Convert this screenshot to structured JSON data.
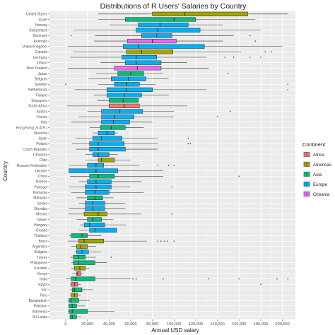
{
  "chart_data": {
    "type": "boxplot",
    "orientation": "horizontal",
    "title": "Distributions of R Users' Salaries by Country",
    "xlabel": "Annual USD salary",
    "ylabel": "Country",
    "xlim": [
      -15000,
      212000
    ],
    "x_ticks": [
      0,
      20000,
      40000,
      60000,
      80000,
      100000,
      120000,
      140000,
      160000,
      180000,
      200000
    ],
    "x_tick_labels": [
      "0",
      "20,000",
      "40,000",
      "60,000",
      "80,000",
      "100,000",
      "120,000",
      "140,000",
      "160,000",
      "180,000",
      "200,000"
    ],
    "grid": true,
    "background": "#ebebeb",
    "legend": {
      "title": "Continent",
      "position": "right",
      "entries": [
        {
          "name": "Africa",
          "color": "#F8766D"
        },
        {
          "name": "Americas",
          "color": "#A3A500"
        },
        {
          "name": "Asia",
          "color": "#00BF7D"
        },
        {
          "name": "Europe",
          "color": "#00B0F6"
        },
        {
          "name": "Oceania",
          "color": "#E76BF3"
        }
      ]
    },
    "series": [
      {
        "country": "United States",
        "continent": "Americas",
        "whisker_low": 30000,
        "q1": 80000,
        "median": 110000,
        "q3": 168000,
        "whisker_high": 205000,
        "outliers": []
      },
      {
        "country": "Israel",
        "continent": "Asia",
        "whisker_low": 30000,
        "q1": 55000,
        "median": 100000,
        "q3": 120000,
        "whisker_high": 175000,
        "outliers": []
      },
      {
        "country": "Norway",
        "continent": "Europe",
        "whisker_low": 40000,
        "q1": 67000,
        "median": 87000,
        "q3": 113000,
        "whisker_high": 145000,
        "outliers": []
      },
      {
        "country": "Switzerland",
        "continent": "Europe",
        "whisker_low": 7000,
        "q1": 65000,
        "median": 85000,
        "q3": 124000,
        "whisker_high": 180000,
        "outliers": []
      },
      {
        "country": "Denmark",
        "continent": "Europe",
        "whisker_low": 27000,
        "q1": 70000,
        "median": 84000,
        "q3": 98000,
        "whisker_high": 155000,
        "outliers": [
          5000,
          170000
        ]
      },
      {
        "country": "Australia",
        "continent": "Oceania",
        "whisker_low": 26000,
        "q1": 57000,
        "median": 80000,
        "q3": 102000,
        "whisker_high": 145000,
        "outliers": [
          175000
        ]
      },
      {
        "country": "United Kingdom",
        "continent": "Europe",
        "whisker_low": 2000,
        "q1": 53000,
        "median": 67000,
        "q3": 128000,
        "whisker_high": 200000,
        "outliers": []
      },
      {
        "country": "Canada",
        "continent": "Americas",
        "whisker_low": 7000,
        "q1": 56000,
        "median": 70000,
        "q3": 99000,
        "whisker_high": 162000,
        "outliers": [
          184000,
          190000
        ]
      },
      {
        "country": "Germany",
        "continent": "Europe",
        "whisker_low": 4000,
        "q1": 52000,
        "median": 65000,
        "q3": 84000,
        "whisker_high": 130000,
        "outliers": [
          147000,
          155000,
          170000,
          180000
        ]
      },
      {
        "country": "Ireland",
        "continent": "Europe",
        "whisker_low": 32000,
        "q1": 55000,
        "median": 65000,
        "q3": 88000,
        "whisker_high": 112000,
        "outliers": []
      },
      {
        "country": "New Zealand",
        "continent": "Oceania",
        "whisker_low": 2000,
        "q1": 45000,
        "median": 66000,
        "q3": 88000,
        "whisker_high": 132000,
        "outliers": []
      },
      {
        "country": "Japan",
        "continent": "Asia",
        "whisker_low": 28000,
        "q1": 48000,
        "median": 60000,
        "q3": 72000,
        "whisker_high": 90000,
        "outliers": [
          150000
        ]
      },
      {
        "country": "Belgium",
        "continent": "Europe",
        "whisker_low": 21000,
        "q1": 42000,
        "median": 58000,
        "q3": 74000,
        "whisker_high": 95000,
        "outliers": []
      },
      {
        "country": "Sweden",
        "continent": "Europe",
        "whisker_low": 30000,
        "q1": 45000,
        "median": 56000,
        "q3": 68000,
        "whisker_high": 83000,
        "outliers": [
          0,
          205000
        ]
      },
      {
        "country": "Netherlands",
        "continent": "Europe",
        "whisker_low": 8000,
        "q1": 38000,
        "median": 56000,
        "q3": 80000,
        "whisker_high": 130000,
        "outliers": [
          205000
        ]
      },
      {
        "country": "Finland",
        "continent": "Europe",
        "whisker_low": 26000,
        "q1": 38000,
        "median": 54000,
        "q3": 70000,
        "whisker_high": 95000,
        "outliers": []
      },
      {
        "country": "Singapore",
        "continent": "Asia",
        "whisker_low": 29000,
        "q1": 40000,
        "median": 53000,
        "q3": 67000,
        "whisker_high": 67000,
        "outliers": []
      },
      {
        "country": "South Africa",
        "continent": "Africa",
        "whisker_low": 1000,
        "q1": 40000,
        "median": 54000,
        "q3": 68000,
        "whisker_high": 112000,
        "outliers": []
      },
      {
        "country": "Austria",
        "continent": "Europe",
        "whisker_low": 20000,
        "q1": 33000,
        "median": 50000,
        "q3": 71000,
        "whisker_high": 100000,
        "outliers": [
          152000
        ]
      },
      {
        "country": "France",
        "continent": "Europe",
        "whisker_low": 12000,
        "q1": 33000,
        "median": 45000,
        "q3": 63000,
        "whisker_high": 100000,
        "outliers": [
          140000
        ]
      },
      {
        "country": "Italy",
        "continent": "Europe",
        "whisker_low": 5000,
        "q1": 33000,
        "median": 44000,
        "q3": 59000,
        "whisker_high": 80000,
        "outliers": []
      },
      {
        "country": "Hong Kong (S.A.R.)",
        "continent": "Asia",
        "whisker_low": 22000,
        "q1": 32000,
        "median": 42000,
        "q3": 55000,
        "whisker_high": 72000,
        "outliers": []
      },
      {
        "country": "Slovenia",
        "continent": "Europe",
        "whisker_low": 25000,
        "q1": 30000,
        "median": 38000,
        "q3": 45000,
        "whisker_high": 48000,
        "outliers": []
      },
      {
        "country": "Spain",
        "continent": "Europe",
        "whisker_low": 9000,
        "q1": 25000,
        "median": 33000,
        "q3": 52000,
        "whisker_high": 85000,
        "outliers": [
          113000
        ]
      },
      {
        "country": "Poland",
        "continent": "Europe",
        "whisker_low": 6000,
        "q1": 22000,
        "median": 30000,
        "q3": 54000,
        "whisker_high": 85000,
        "outliers": [
          113000,
          115000
        ]
      },
      {
        "country": "Czech Republic",
        "continent": "Europe",
        "whisker_low": 9000,
        "q1": 22000,
        "median": 30000,
        "q3": 55000,
        "whisker_high": 85000,
        "outliers": []
      },
      {
        "country": "Lithuania",
        "continent": "Europe",
        "whisker_low": 18000,
        "q1": 25000,
        "median": 30000,
        "q3": 40000,
        "whisker_high": 48000,
        "outliers": []
      },
      {
        "country": "Chile",
        "continent": "Americas",
        "whisker_low": 18000,
        "q1": 30000,
        "median": 33000,
        "q3": 45000,
        "whisker_high": 60000,
        "outliers": []
      },
      {
        "country": "Russian Federation",
        "continent": "Europe",
        "whisker_low": 3000,
        "q1": 20000,
        "median": 28000,
        "q3": 35000,
        "whisker_high": 68000,
        "outliers": [
          85000,
          95000,
          100000
        ]
      },
      {
        "country": "Ukraine",
        "continent": "Europe",
        "whisker_low": 3000,
        "q1": 3000,
        "median": 28000,
        "q3": 48000,
        "whisker_high": 90000,
        "outliers": []
      },
      {
        "country": "China",
        "continent": "Asia",
        "whisker_low": 4000,
        "q1": 22000,
        "median": 30000,
        "q3": 45000,
        "whisker_high": 90000,
        "outliers": [
          160000
        ]
      },
      {
        "country": "Greece",
        "continent": "Europe",
        "whisker_low": 12000,
        "q1": 20000,
        "median": 28000,
        "q3": 42000,
        "whisker_high": 70000,
        "outliers": []
      },
      {
        "country": "Portugal",
        "continent": "Europe",
        "whisker_low": 3000,
        "q1": 18000,
        "median": 28000,
        "q3": 42000,
        "whisker_high": 60000,
        "outliers": [
          98000
        ]
      },
      {
        "country": "Romania",
        "continent": "Europe",
        "whisker_low": 5000,
        "q1": 18000,
        "median": 27000,
        "q3": 40000,
        "whisker_high": 72000,
        "outliers": []
      },
      {
        "country": "Malaysia",
        "continent": "Asia",
        "whisker_low": 10000,
        "q1": 20000,
        "median": 27000,
        "q3": 34000,
        "whisker_high": 44000,
        "outliers": []
      },
      {
        "country": "Serbia",
        "continent": "Europe",
        "whisker_low": 12000,
        "q1": 18000,
        "median": 25000,
        "q3": 36000,
        "whisker_high": 55000,
        "outliers": []
      },
      {
        "country": "Slovakia",
        "continent": "Europe",
        "whisker_low": 3000,
        "q1": 18000,
        "median": 25000,
        "q3": 36000,
        "whisker_high": 55000,
        "outliers": []
      },
      {
        "country": "Mexico",
        "continent": "Americas",
        "whisker_low": 2000,
        "q1": 17000,
        "median": 30000,
        "q3": 38000,
        "whisker_high": 70000,
        "outliers": [
          98000
        ]
      },
      {
        "country": "Taiwan",
        "continent": "Asia",
        "whisker_low": 10000,
        "q1": 20000,
        "median": 25000,
        "q3": 33000,
        "whisker_high": 44000,
        "outliers": []
      },
      {
        "country": "Hungary",
        "continent": "Europe",
        "whisker_low": 13000,
        "q1": 17000,
        "median": 22000,
        "q3": 36000,
        "whisker_high": 56000,
        "outliers": []
      },
      {
        "country": "Croatia",
        "continent": "Europe",
        "whisker_low": 12000,
        "q1": 22000,
        "median": 27000,
        "q3": 47000,
        "whisker_high": 47000,
        "outliers": []
      },
      {
        "country": "Thailand",
        "continent": "Asia",
        "whisker_low": 3000,
        "q1": 5000,
        "median": 15000,
        "q3": 20000,
        "whisker_high": 33000,
        "outliers": []
      },
      {
        "country": "Brazil",
        "continent": "Americas",
        "whisker_low": 2000,
        "q1": 12000,
        "median": 17000,
        "q3": 35000,
        "whisker_high": 75000,
        "outliers": [
          85000,
          88000,
          91000,
          94000,
          100000
        ]
      },
      {
        "country": "Argentina",
        "continent": "Americas",
        "whisker_low": 5000,
        "q1": 10000,
        "median": 14000,
        "q3": 20000,
        "whisker_high": 28000,
        "outliers": []
      },
      {
        "country": "Bulgaria",
        "continent": "Europe",
        "whisker_low": 8000,
        "q1": 10000,
        "median": 15000,
        "q3": 21000,
        "whisker_high": 33000,
        "outliers": []
      },
      {
        "country": "Turkey",
        "continent": "Asia",
        "whisker_low": 4000,
        "q1": 7000,
        "median": 12000,
        "q3": 18000,
        "whisker_high": 28000,
        "outliers": [
          42000
        ]
      },
      {
        "country": "Philippines",
        "continent": "Asia",
        "whisker_low": 5000,
        "q1": 7000,
        "median": 12000,
        "q3": 27000,
        "whisker_high": 38000,
        "outliers": []
      },
      {
        "country": "Ecuador",
        "continent": "Americas",
        "whisker_low": 5000,
        "q1": 8000,
        "median": 13000,
        "q3": 18000,
        "whisker_high": 22000,
        "outliers": []
      },
      {
        "country": "Kenya",
        "continent": "Africa",
        "whisker_low": 6000,
        "q1": 10000,
        "median": 11000,
        "q3": 14000,
        "whisker_high": 16000,
        "outliers": []
      },
      {
        "country": "India",
        "continent": "Asia",
        "whisker_low": 0,
        "q1": 5000,
        "median": 9000,
        "q3": 27000,
        "whisker_high": 60000,
        "outliers": [
          62000,
          65000,
          90000,
          132000,
          160000,
          195000,
          205000
        ]
      },
      {
        "country": "Egypt",
        "continent": "Africa",
        "whisker_low": 4000,
        "q1": 5000,
        "median": 8000,
        "q3": 11000,
        "whisker_high": 14000,
        "outliers": [
          180000
        ]
      },
      {
        "country": "Iran",
        "continent": "Asia",
        "whisker_low": 4000,
        "q1": 6000,
        "median": 8000,
        "q3": 15000,
        "whisker_high": 25000,
        "outliers": []
      },
      {
        "country": "Peru",
        "continent": "Americas",
        "whisker_low": 4000,
        "q1": 5000,
        "median": 8000,
        "q3": 11000,
        "whisker_high": 14000,
        "outliers": []
      },
      {
        "country": "Bangladesh",
        "continent": "Asia",
        "whisker_low": 2000,
        "q1": 3000,
        "median": 5000,
        "q3": 12000,
        "whisker_high": 22000,
        "outliers": []
      },
      {
        "country": "Pakistan",
        "continent": "Asia",
        "whisker_low": 2000,
        "q1": 3000,
        "median": 6000,
        "q3": 10000,
        "whisker_high": 18000,
        "outliers": []
      },
      {
        "country": "Indonesia",
        "continent": "Asia",
        "whisker_low": 2000,
        "q1": 3000,
        "median": 6000,
        "q3": 20000,
        "whisker_high": 45000,
        "outliers": []
      },
      {
        "country": "Sri Lanka",
        "continent": "Asia",
        "whisker_low": 3000,
        "q1": 4000,
        "median": 6000,
        "q3": 10000,
        "whisker_high": 14000,
        "outliers": []
      }
    ]
  }
}
